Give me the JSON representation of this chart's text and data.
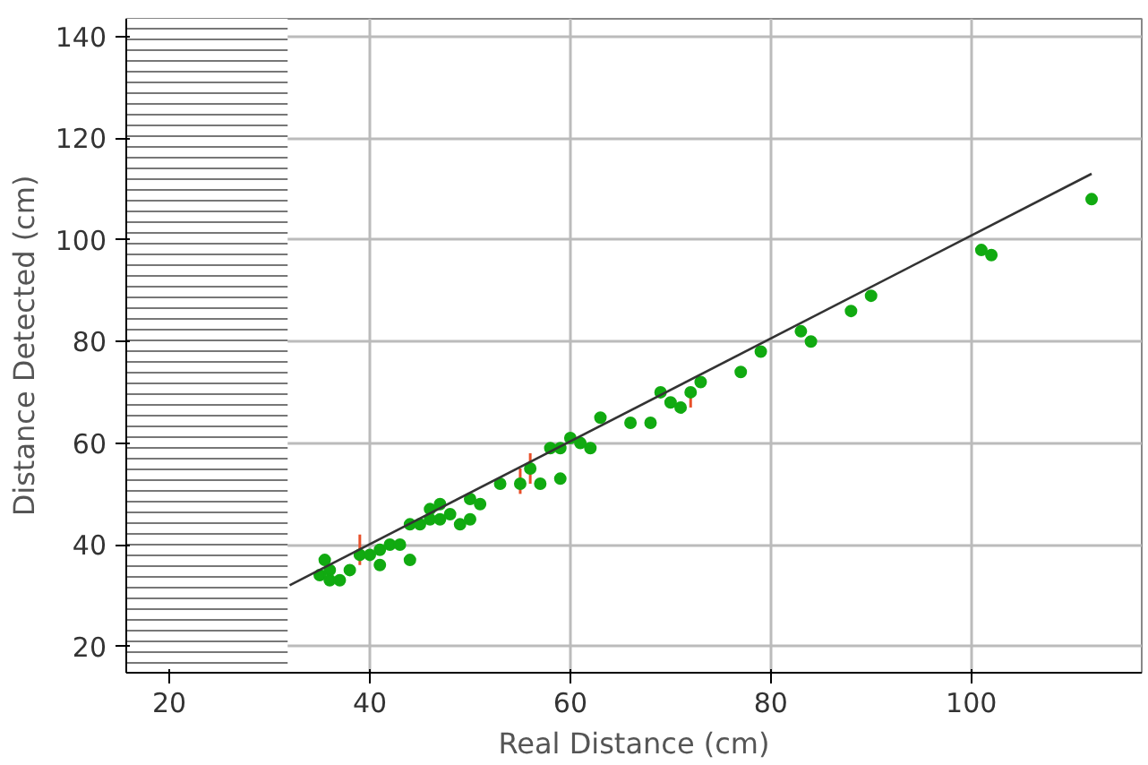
{
  "chart_data": {
    "type": "scatter",
    "xlabel": "Real Distance (cm)",
    "ylabel": "Distance Detected (cm)",
    "xlim": [
      15.7,
      117
    ],
    "ylim": [
      14.8,
      143.5
    ],
    "xticks": [
      20,
      40,
      60,
      80,
      100
    ],
    "yticks": [
      20,
      40,
      60,
      80,
      100,
      120,
      140
    ],
    "grid": true,
    "marker": "circle",
    "bands": [
      {
        "axis": "x",
        "from": 15.7,
        "to": 31.8,
        "color": "#777777"
      }
    ],
    "series": [
      {
        "color": "#11aa11",
        "x": [
          35,
          35.5,
          36,
          36,
          37,
          38,
          39,
          40,
          41,
          41,
          42,
          43,
          44,
          44,
          45,
          46,
          46,
          47,
          47,
          48,
          49,
          50,
          50,
          51,
          53,
          55,
          56,
          57,
          58,
          59,
          59,
          60,
          61,
          62,
          63,
          66,
          68,
          69,
          70,
          71,
          72,
          73,
          77,
          79,
          83,
          84,
          88,
          90,
          101,
          102,
          112
        ],
        "values": [
          34,
          37,
          35,
          33,
          33,
          35,
          38,
          38,
          36,
          39,
          40,
          40,
          37,
          44,
          44,
          47,
          45,
          48,
          45,
          46,
          44,
          45,
          49,
          48,
          52,
          52,
          55,
          52,
          59,
          59,
          53,
          61,
          60,
          59,
          65,
          64,
          64,
          70,
          68,
          67,
          70,
          72,
          74,
          78,
          82,
          80,
          86,
          89,
          98,
          97,
          108
        ],
        "errors": [
          null,
          null,
          null,
          null,
          null,
          null,
          [
            36,
            42
          ],
          null,
          null,
          null,
          null,
          null,
          null,
          null,
          null,
          null,
          null,
          null,
          null,
          null,
          null,
          null,
          null,
          null,
          null,
          [
            50,
            55
          ],
          [
            52,
            58
          ],
          null,
          null,
          null,
          null,
          null,
          null,
          null,
          null,
          null,
          null,
          null,
          null,
          null,
          [
            67,
            71
          ],
          null,
          null,
          null,
          null,
          null,
          null,
          null,
          null,
          null,
          null
        ]
      },
      {
        "type": "line",
        "color": "#333333",
        "x": [
          32,
          112
        ],
        "values": [
          32,
          113
        ],
        "marker": "none"
      }
    ]
  }
}
